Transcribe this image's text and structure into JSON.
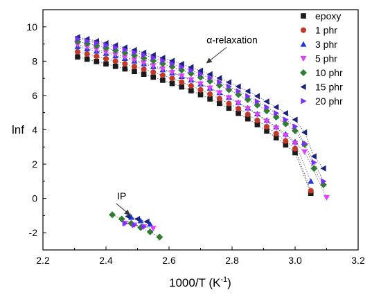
{
  "chart_data": {
    "type": "scatter",
    "xlabel_main": "1000/T (K",
    "xlabel_sup": "-1",
    "xlabel_end": ")",
    "ylabel": "lnf",
    "xlim": [
      2.2,
      3.2
    ],
    "ylim": [
      -3.0,
      11.0
    ],
    "xticks": [
      2.2,
      2.4,
      2.6,
      2.8,
      3.0,
      3.2
    ],
    "yticks": [
      -2,
      0,
      2,
      4,
      6,
      8,
      10
    ],
    "xtick_labels": [
      "2.2",
      "2.4",
      "2.6",
      "2.8",
      "3.0",
      "3.2"
    ],
    "ytick_labels": [
      "-2",
      "0",
      "2",
      "4",
      "6",
      "8",
      "10"
    ],
    "grid": false,
    "legend_position": "top-right",
    "annotations": [
      {
        "text": "α-relaxation",
        "x": 2.8,
        "y": 9.05,
        "arrow_to": [
          2.72,
          7.9
        ]
      },
      {
        "text": "IP",
        "x": 2.45,
        "y": -0.05,
        "arrow_to": [
          2.475,
          -0.95
        ]
      }
    ],
    "series": [
      {
        "name": "epoxy",
        "marker": "square",
        "color": "#1a1a1a",
        "alpha": {
          "x": [
            2.31,
            2.34,
            2.37,
            2.4,
            2.43,
            2.46,
            2.49,
            2.52,
            2.55,
            2.58,
            2.61,
            2.64,
            2.67,
            2.7,
            2.73,
            2.76,
            2.79,
            2.82,
            2.85,
            2.88,
            2.91,
            2.94,
            2.97,
            3.0,
            3.05
          ],
          "y": [
            8.25,
            8.12,
            7.98,
            7.84,
            7.7,
            7.55,
            7.4,
            7.24,
            7.07,
            6.89,
            6.7,
            6.5,
            6.28,
            6.05,
            5.8,
            5.54,
            5.26,
            4.96,
            4.64,
            4.3,
            3.93,
            3.54,
            3.12,
            2.67,
            0.3
          ]
        },
        "ip": {
          "x": [],
          "y": []
        }
      },
      {
        "name": "1 phr",
        "marker": "circle",
        "color": "#c0392b",
        "alpha": {
          "x": [
            2.31,
            2.34,
            2.37,
            2.4,
            2.43,
            2.46,
            2.49,
            2.52,
            2.55,
            2.58,
            2.61,
            2.64,
            2.67,
            2.7,
            2.73,
            2.76,
            2.79,
            2.82,
            2.85,
            2.88,
            2.91,
            2.94,
            2.97,
            3.0,
            3.05
          ],
          "y": [
            8.55,
            8.42,
            8.28,
            8.14,
            8.0,
            7.85,
            7.69,
            7.53,
            7.36,
            7.18,
            6.99,
            6.78,
            6.56,
            6.33,
            6.08,
            5.82,
            5.53,
            5.23,
            4.9,
            4.55,
            4.18,
            3.78,
            3.35,
            2.9,
            0.45
          ]
        },
        "ip": {
          "x": [],
          "y": []
        }
      },
      {
        "name": "3 phr",
        "marker": "triangle-up",
        "color": "#1f3adb",
        "alpha": {
          "x": [
            2.31,
            2.34,
            2.37,
            2.4,
            2.43,
            2.46,
            2.49,
            2.52,
            2.55,
            2.58,
            2.61,
            2.64,
            2.67,
            2.7,
            2.73,
            2.76,
            2.79,
            2.82,
            2.85,
            2.88,
            2.91,
            2.94,
            2.97,
            3.0,
            3.05
          ],
          "y": [
            8.85,
            8.72,
            8.59,
            8.45,
            8.31,
            8.16,
            8.01,
            7.85,
            7.68,
            7.5,
            7.31,
            7.11,
            6.9,
            6.67,
            6.43,
            6.17,
            5.89,
            5.59,
            5.27,
            4.93,
            4.56,
            4.17,
            3.75,
            3.3,
            1.0
          ]
        },
        "ip": {
          "x": [
            2.48,
            2.51,
            2.54
          ],
          "y": [
            -1.1,
            -1.3,
            -1.5
          ]
        }
      },
      {
        "name": "5 phr",
        "marker": "triangle-down",
        "color": "#e040fb",
        "alpha": {
          "x": [
            2.31,
            2.34,
            2.37,
            2.4,
            2.43,
            2.46,
            2.49,
            2.52,
            2.55,
            2.58,
            2.61,
            2.64,
            2.67,
            2.7,
            2.73,
            2.76,
            2.79,
            2.82,
            2.85,
            2.88,
            2.91,
            2.94,
            2.97,
            3.0,
            3.03,
            3.1
          ],
          "y": [
            8.95,
            8.82,
            8.68,
            8.54,
            8.39,
            8.24,
            8.08,
            7.91,
            7.74,
            7.55,
            7.35,
            7.14,
            6.92,
            6.68,
            6.43,
            6.16,
            5.87,
            5.56,
            5.23,
            4.88,
            4.5,
            4.1,
            3.67,
            3.21,
            2.72,
            0.05
          ]
        },
        "ip": {
          "x": [
            2.46,
            2.49,
            2.52,
            2.55
          ],
          "y": [
            -1.45,
            -1.55,
            -1.65,
            -1.75
          ]
        }
      },
      {
        "name": "10 phr",
        "marker": "diamond",
        "color": "#2e7d32",
        "alpha": {
          "x": [
            2.31,
            2.34,
            2.37,
            2.4,
            2.43,
            2.46,
            2.49,
            2.52,
            2.55,
            2.58,
            2.61,
            2.64,
            2.67,
            2.7,
            2.73,
            2.76,
            2.79,
            2.82,
            2.85,
            2.88,
            2.91,
            2.94,
            2.97,
            3.0,
            3.03,
            3.06,
            3.09
          ],
          "y": [
            9.15,
            9.03,
            8.9,
            8.77,
            8.63,
            8.49,
            8.34,
            8.18,
            8.02,
            7.85,
            7.67,
            7.48,
            7.28,
            7.06,
            6.83,
            6.59,
            6.33,
            6.05,
            5.76,
            5.44,
            5.1,
            4.74,
            4.35,
            3.94,
            3.15,
            1.75,
            0.8
          ]
        },
        "ip": {
          "x": [
            2.42,
            2.45,
            2.48,
            2.51,
            2.54,
            2.57
          ],
          "y": [
            -0.95,
            -1.2,
            -1.45,
            -1.7,
            -1.95,
            -2.25
          ]
        }
      },
      {
        "name": "15 phr",
        "marker": "triangle-left",
        "color": "#1a237e",
        "alpha": {
          "x": [
            2.31,
            2.34,
            2.37,
            2.4,
            2.43,
            2.46,
            2.49,
            2.52,
            2.55,
            2.58,
            2.61,
            2.64,
            2.67,
            2.7,
            2.73,
            2.76,
            2.79,
            2.82,
            2.85,
            2.88,
            2.91,
            2.94,
            2.97,
            3.0,
            3.03,
            3.06,
            3.09
          ],
          "y": [
            9.4,
            9.29,
            9.17,
            9.05,
            8.92,
            8.79,
            8.65,
            8.5,
            8.35,
            8.19,
            8.02,
            7.84,
            7.65,
            7.45,
            7.24,
            7.01,
            6.77,
            6.52,
            6.25,
            5.96,
            5.65,
            5.32,
            4.97,
            4.59,
            3.85,
            2.45,
            1.75
          ]
        },
        "ip": {
          "x": [
            2.47,
            2.5,
            2.53
          ],
          "y": [
            -1.05,
            -1.2,
            -1.35
          ]
        }
      },
      {
        "name": "20 phr",
        "marker": "triangle-right",
        "color": "#7b2ff7",
        "alpha": {
          "x": [
            2.31,
            2.34,
            2.37,
            2.4,
            2.43,
            2.46,
            2.49,
            2.52,
            2.55,
            2.58,
            2.61,
            2.64,
            2.67,
            2.7,
            2.73,
            2.76,
            2.79,
            2.82,
            2.85,
            2.88,
            2.91,
            2.94,
            2.97,
            3.0,
            3.03,
            3.06,
            3.09
          ],
          "y": [
            9.3,
            9.18,
            9.06,
            8.93,
            8.8,
            8.66,
            8.51,
            8.36,
            8.2,
            8.03,
            7.85,
            7.66,
            7.46,
            7.25,
            7.02,
            6.78,
            6.52,
            6.25,
            5.96,
            5.65,
            5.32,
            4.97,
            4.59,
            4.19,
            3.2,
            2.1,
            1.0
          ]
        },
        "ip": {
          "x": [
            2.46,
            2.49,
            2.52
          ],
          "y": [
            -1.45,
            -1.55,
            -1.65
          ]
        }
      }
    ]
  }
}
